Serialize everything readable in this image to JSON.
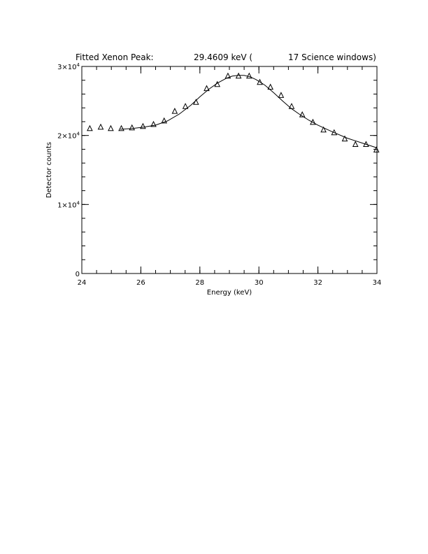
{
  "chart_data": {
    "type": "scatter",
    "title": {
      "left": "Fitted Xenon Peak:",
      "middle": "29.4609 keV (",
      "right": "17 Science windows)"
    },
    "xlabel": "Energy (keV)",
    "ylabel": "Detector counts",
    "xlim": [
      24,
      34
    ],
    "ylim": [
      0,
      30000
    ],
    "x_ticks": [
      {
        "value": 24,
        "label": "24"
      },
      {
        "value": 26,
        "label": "26"
      },
      {
        "value": 28,
        "label": "28"
      },
      {
        "value": 30,
        "label": "30"
      },
      {
        "value": 32,
        "label": "32"
      },
      {
        "value": 34,
        "label": "34"
      }
    ],
    "y_ticks": [
      {
        "value": 0,
        "base": "0",
        "exp": ""
      },
      {
        "value": 10000,
        "base": "1×10",
        "exp": "4"
      },
      {
        "value": 20000,
        "base": "2×10",
        "exp": "4"
      },
      {
        "value": 30000,
        "base": "3×10",
        "exp": "4"
      }
    ],
    "x_minor_step": 0.5,
    "y_minor_step": 2000,
    "series": [
      {
        "marker": "triangle",
        "x": [
          24.27,
          24.64,
          24.98,
          25.34,
          25.7,
          26.07,
          26.43,
          26.79,
          27.15,
          27.51,
          27.87,
          28.23,
          28.59,
          28.95,
          29.31,
          29.67,
          30.03,
          30.39,
          30.75,
          31.11,
          31.47,
          31.83,
          32.19,
          32.55,
          32.91,
          33.27,
          33.63,
          33.98
        ],
        "y": [
          21000,
          21200,
          21000,
          21000,
          21100,
          21300,
          21600,
          22100,
          23500,
          24200,
          24800,
          26800,
          27400,
          28600,
          28600,
          28600,
          27700,
          27000,
          25800,
          24200,
          23000,
          21900,
          20800,
          20400,
          19500,
          18700,
          18700,
          17900
        ]
      },
      {
        "marker": "line",
        "x": [
          25.3,
          25.7,
          26.1,
          26.5,
          26.9,
          27.3,
          27.7,
          28.0,
          28.3,
          28.6,
          28.9,
          29.1,
          29.3,
          29.5,
          29.7,
          29.9,
          30.2,
          30.5,
          30.8,
          31.1,
          31.4,
          31.7,
          32.0,
          32.5,
          33.0,
          33.5,
          34.0
        ],
        "y": [
          20900,
          21000,
          21200,
          21500,
          22100,
          23100,
          24400,
          25600,
          26700,
          27600,
          28300,
          28600,
          28700,
          28700,
          28500,
          28100,
          27300,
          26200,
          25000,
          23900,
          23000,
          22200,
          21500,
          20500,
          19600,
          18900,
          18200
        ]
      }
    ]
  }
}
